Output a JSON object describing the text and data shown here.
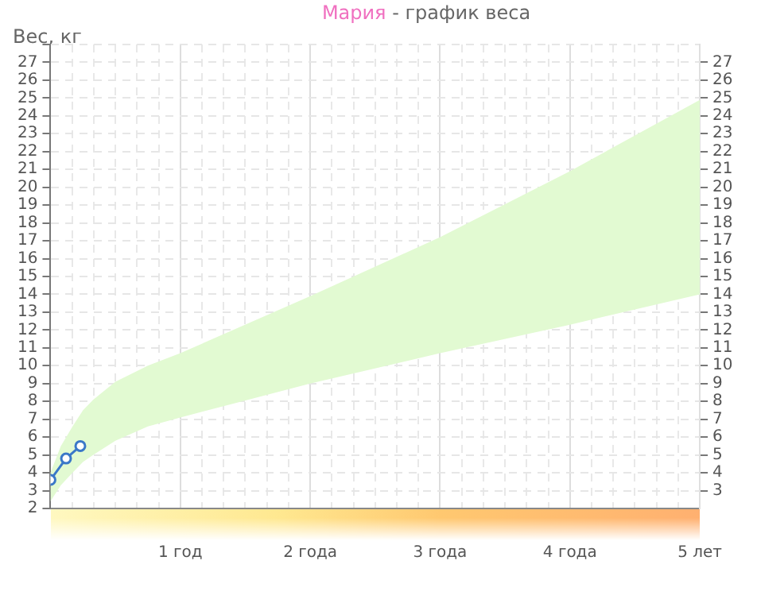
{
  "chart_data": {
    "type": "line",
    "title": "Мария - график веса",
    "ylabel": "Вес, кг",
    "xlim": [
      0,
      5
    ],
    "xticks": [
      {
        "value": 0,
        "label": null
      },
      {
        "value": 0.1667,
        "label": null
      },
      {
        "value": 0.3333,
        "label": null
      },
      {
        "value": 0.5,
        "label": null
      },
      {
        "value": 0.6667,
        "label": null
      },
      {
        "value": 0.8333,
        "label": null
      },
      {
        "value": 1,
        "label": "1 год"
      },
      {
        "value": 1.1667,
        "label": null
      },
      {
        "value": 1.3333,
        "label": null
      },
      {
        "value": 1.5,
        "label": null
      },
      {
        "value": 1.6667,
        "label": null
      },
      {
        "value": 1.8333,
        "label": null
      },
      {
        "value": 2,
        "label": "2 года"
      },
      {
        "value": 2.1667,
        "label": null
      },
      {
        "value": 2.3333,
        "label": null
      },
      {
        "value": 2.5,
        "label": null
      },
      {
        "value": 2.6667,
        "label": null
      },
      {
        "value": 2.8333,
        "label": null
      },
      {
        "value": 3,
        "label": "3 года"
      },
      {
        "value": 3.1667,
        "label": null
      },
      {
        "value": 3.3333,
        "label": null
      },
      {
        "value": 3.5,
        "label": null
      },
      {
        "value": 3.6667,
        "label": null
      },
      {
        "value": 3.8333,
        "label": null
      },
      {
        "value": 4,
        "label": "4 года"
      },
      {
        "value": 4.1667,
        "label": null
      },
      {
        "value": 4.3333,
        "label": null
      },
      {
        "value": 4.5,
        "label": null
      },
      {
        "value": 4.6667,
        "label": null
      },
      {
        "value": 4.8333,
        "label": null
      },
      {
        "value": 5,
        "label": "5 лет"
      }
    ],
    "ylim": [
      2,
      28
    ],
    "yticks": [
      2,
      3,
      4,
      5,
      6,
      7,
      8,
      9,
      10,
      11,
      12,
      13,
      14,
      15,
      16,
      17,
      18,
      19,
      20,
      21,
      22,
      23,
      24,
      25,
      26,
      27,
      {
        "value": 28,
        "label": null
      }
    ],
    "y2lim": [
      2,
      28
    ],
    "y2ticks": [
      3,
      4,
      5,
      6,
      7,
      8,
      9,
      10,
      11,
      12,
      13,
      14,
      15,
      16,
      17,
      18,
      19,
      20,
      21,
      22,
      23,
      24,
      25,
      26,
      27
    ],
    "grid": true,
    "legend": false,
    "marker": "circle",
    "series": [
      {
        "type": "line",
        "color": "#e2fad2",
        "marker": "none",
        "x": [
          0,
          0.08,
          0.17,
          0.25,
          0.33,
          0.5,
          0.75,
          1,
          2,
          3,
          4,
          5
        ],
        "values": [
          null,
          null,
          null,
          null,
          null,
          null,
          null,
          null,
          null,
          null,
          null,
          null
        ],
        "upper": [
          4.0,
          5.5,
          6.6,
          7.5,
          8.1,
          9.1,
          10.0,
          10.7,
          13.9,
          17.2,
          20.9,
          24.9
        ],
        "lower": [
          2.4,
          3.3,
          4.0,
          4.6,
          5.0,
          5.8,
          6.6,
          7.1,
          9.0,
          10.7,
          12.3,
          14.0
        ]
      },
      {
        "type": "line",
        "color": "#3a78c8",
        "x": [
          0,
          0.12,
          0.23
        ],
        "values": [
          3.6,
          4.8,
          5.5
        ]
      }
    ]
  }
}
